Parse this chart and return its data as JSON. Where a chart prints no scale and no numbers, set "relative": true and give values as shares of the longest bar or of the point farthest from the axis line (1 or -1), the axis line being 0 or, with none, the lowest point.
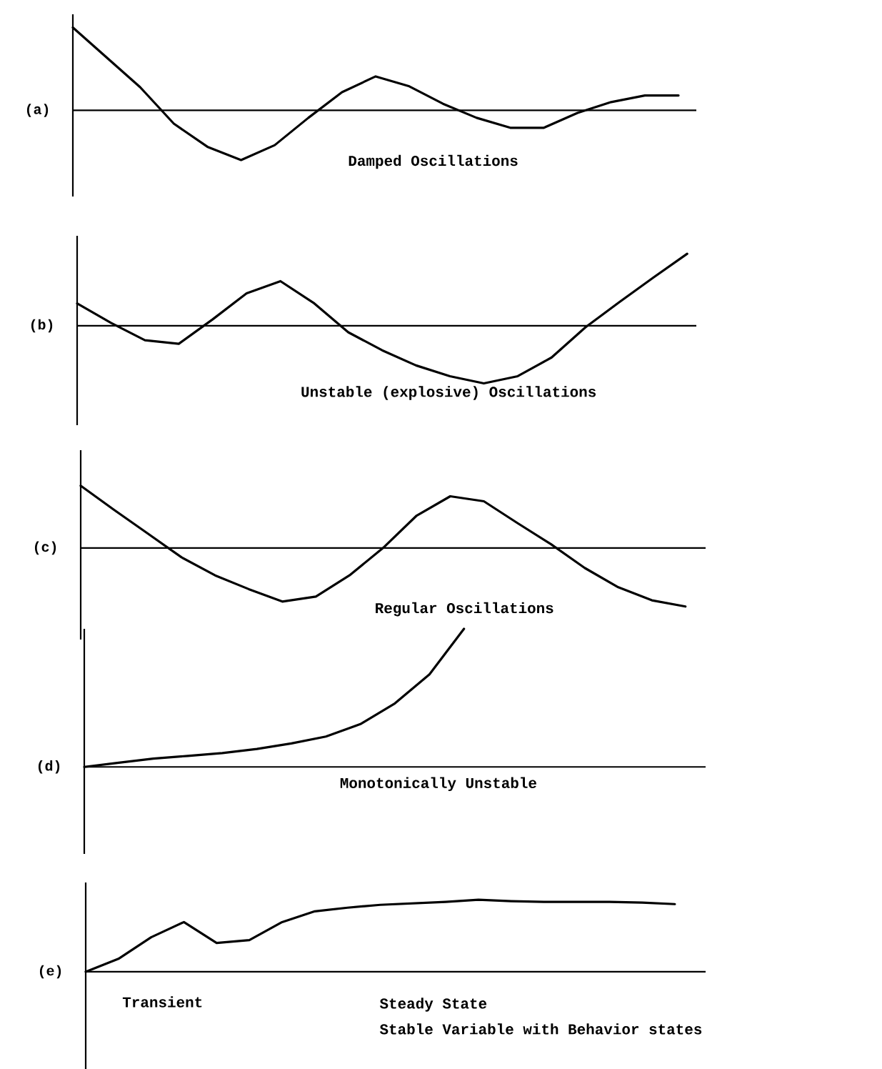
{
  "chart_data": [
    {
      "type": "line",
      "ylabel": "(a)",
      "annotations": [
        "Damped Oscillations"
      ],
      "relative": true,
      "color": "#000000",
      "categories": [
        null,
        null,
        null,
        null,
        null,
        null,
        null,
        null,
        null,
        null,
        null,
        null,
        null,
        null,
        null,
        null,
        null,
        null,
        null
      ],
      "values": [
        1,
        0.64,
        0.28,
        -0.16,
        -0.44,
        -0.6,
        -0.42,
        -0.09,
        0.22,
        0.41,
        0.29,
        0.08,
        -0.09,
        -0.21,
        -0.21,
        -0.03,
        0.1,
        0.18,
        0.18
      ]
    },
    {
      "type": "line",
      "ylabel": "(b)",
      "annotations": [
        "Unstable (explosive) Oscillations"
      ],
      "relative": true,
      "color": "#000000",
      "categories": [
        null,
        null,
        null,
        null,
        null,
        null,
        null,
        null,
        null,
        null,
        null,
        null,
        null,
        null,
        null,
        null,
        null,
        null,
        null
      ],
      "values": [
        0.31,
        0.04,
        -0.2,
        -0.25,
        0.09,
        0.45,
        0.62,
        0.31,
        -0.09,
        -0.34,
        -0.55,
        -0.7,
        -0.8,
        -0.7,
        -0.44,
        -0.02,
        0.33,
        0.67,
        1
      ]
    },
    {
      "type": "line",
      "ylabel": "(c)",
      "annotations": [
        "Regular Oscillations"
      ],
      "relative": true,
      "color": "#000000",
      "categories": [
        null,
        null,
        null,
        null,
        null,
        null,
        null,
        null,
        null,
        null,
        null,
        null,
        null,
        null,
        null,
        null,
        null,
        null,
        null
      ],
      "values": [
        1,
        0.61,
        0.23,
        -0.15,
        -0.44,
        -0.66,
        -0.86,
        -0.78,
        -0.44,
        0,
        0.52,
        0.83,
        0.75,
        0.4,
        0.06,
        -0.32,
        -0.63,
        -0.84,
        -0.94
      ]
    },
    {
      "type": "line",
      "ylabel": "(d)",
      "annotations": [
        "Monotonically Unstable"
      ],
      "relative": true,
      "color": "#000000",
      "categories": [
        null,
        null,
        null,
        null,
        null,
        null,
        null,
        null,
        null,
        null,
        null,
        null,
        null,
        null,
        null,
        null,
        null,
        null,
        null
      ],
      "values": [
        0,
        0.03,
        0.06,
        0.08,
        0.1,
        0.13,
        0.17,
        0.22,
        0.31,
        0.46,
        0.67,
        1,
        null,
        null,
        null,
        null,
        null,
        null,
        null
      ]
    },
    {
      "type": "line",
      "ylabel": "(e)",
      "annotations": [
        "Transient",
        "Steady State",
        "Stable Variable with Behavior states"
      ],
      "relative": true,
      "color": "#000000",
      "categories": [
        null,
        null,
        null,
        null,
        null,
        null,
        null,
        null,
        null,
        null,
        null,
        null,
        null,
        null,
        null,
        null,
        null,
        null,
        null
      ],
      "values": [
        0,
        0.18,
        0.48,
        0.69,
        0.4,
        0.44,
        0.69,
        0.84,
        0.89,
        0.93,
        0.95,
        0.97,
        1,
        0.98,
        0.97,
        0.97,
        0.97,
        0.96,
        0.94
      ]
    }
  ]
}
